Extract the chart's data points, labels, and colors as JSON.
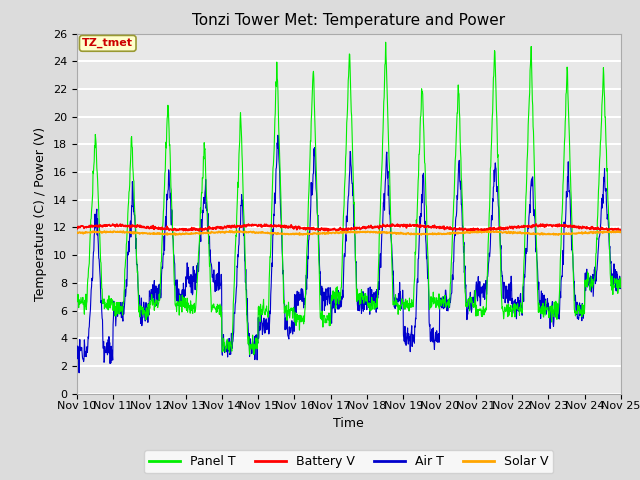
{
  "title": "Tonzi Tower Met: Temperature and Power",
  "xlabel": "Time",
  "ylabel": "Temperature (C) / Power (V)",
  "ylim": [
    0,
    26
  ],
  "yticks": [
    0,
    2,
    4,
    6,
    8,
    10,
    12,
    14,
    16,
    18,
    20,
    22,
    24,
    26
  ],
  "n_days": 15,
  "x_tick_labels": [
    "Nov 10",
    "Nov 11",
    "Nov 12",
    "Nov 13",
    "Nov 14",
    "Nov 15",
    "Nov 16",
    "Nov 17",
    "Nov 18",
    "Nov 19",
    "Nov 20",
    "Nov 21",
    "Nov 22",
    "Nov 23",
    "Nov 24",
    "Nov 25"
  ],
  "panel_t_color": "#00EE00",
  "battery_v_color": "#FF0000",
  "air_t_color": "#0000CC",
  "solar_v_color": "#FFA500",
  "fig_bg_color": "#DCDCDC",
  "plot_bg_color": "#E8E8E8",
  "legend_labels": [
    "Panel T",
    "Battery V",
    "Air T",
    "Solar V"
  ],
  "timezone_label": "TZ_tmet",
  "timezone_box_color": "#FFFFCC",
  "timezone_text_color": "#CC0000",
  "panel_peaks": [
    19,
    18.5,
    21.2,
    18.2,
    20.5,
    24.0,
    23.8,
    25.0,
    25.2,
    22.7,
    22.5,
    25.2,
    25.2,
    23.8,
    23.5
  ],
  "panel_troughs": [
    6.5,
    6.0,
    6.5,
    6.2,
    3.5,
    6.0,
    5.5,
    7.0,
    6.5,
    6.5,
    6.5,
    6.0,
    6.0,
    6.0,
    8.0
  ],
  "air_peaks": [
    13.5,
    14.5,
    15.5,
    14.8,
    14.5,
    18.8,
    17.5,
    17.5,
    17.3,
    16.0,
    16.5,
    16.7,
    16.0,
    16.0,
    15.8
  ],
  "air_troughs": [
    3.0,
    5.8,
    7.2,
    8.2,
    3.5,
    4.8,
    6.8,
    6.5,
    6.8,
    4.0,
    6.5,
    7.5,
    6.5,
    6.0,
    8.2
  ],
  "battery_base": 12.0,
  "solar_base": 11.6,
  "grid_color": "#FFFFFF",
  "grid_linewidth": 1.5
}
